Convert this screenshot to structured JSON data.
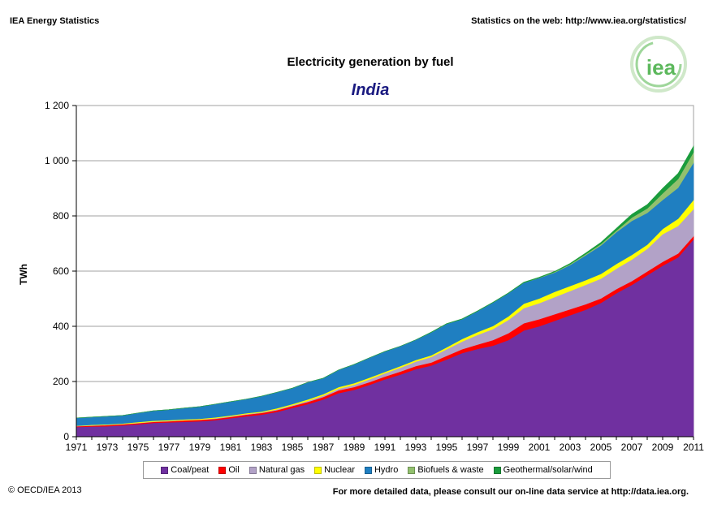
{
  "header": {
    "left": "IEA Energy Statistics",
    "right": "Statistics on the web: http://www.iea.org/statistics/"
  },
  "logo": {
    "text": "iea",
    "color": "#5cb85c"
  },
  "footer": {
    "left": "© OECD/IEA 2013",
    "right": "For more detailed data, please consult our on-line data service at http://data.iea.org."
  },
  "chart_data": {
    "type": "area",
    "stacked": true,
    "title": "Electricity generation by fuel",
    "subtitle": "India",
    "ylabel": "TWh",
    "xlabel": "",
    "ylim": [
      0,
      1200
    ],
    "yticks": [
      0,
      200,
      400,
      600,
      800,
      1000,
      1200
    ],
    "ytick_labels": [
      "0",
      "200",
      "400",
      "600",
      "800",
      "1 000",
      "1 200"
    ],
    "xtick_labels": [
      "1971",
      "1973",
      "1975",
      "1977",
      "1979",
      "1981",
      "1983",
      "1985",
      "1987",
      "1989",
      "1991",
      "1993",
      "1995",
      "1997",
      "1999",
      "2001",
      "2003",
      "2005",
      "2007",
      "2009",
      "2011"
    ],
    "grid": true,
    "legend_position": "bottom",
    "x": [
      1971,
      1972,
      1973,
      1974,
      1975,
      1976,
      1977,
      1978,
      1979,
      1980,
      1981,
      1982,
      1983,
      1984,
      1985,
      1986,
      1987,
      1988,
      1989,
      1990,
      1991,
      1992,
      1993,
      1994,
      1995,
      1996,
      1997,
      1998,
      1999,
      2000,
      2001,
      2002,
      2003,
      2004,
      2005,
      2006,
      2007,
      2008,
      2009,
      2010,
      2011
    ],
    "series": [
      {
        "name": "Coal/peat",
        "color": "#7030a0",
        "values": [
          35,
          37,
          38,
          41,
          45,
          50,
          52,
          54,
          56,
          60,
          67,
          74,
          80,
          90,
          104,
          118,
          135,
          158,
          170,
          188,
          208,
          225,
          245,
          258,
          280,
          303,
          318,
          330,
          350,
          385,
          400,
          420,
          440,
          460,
          485,
          520,
          550,
          585,
          620,
          650,
          715
        ]
      },
      {
        "name": "Oil",
        "color": "#ff0000",
        "values": [
          3,
          3,
          4,
          4,
          4,
          4,
          4,
          5,
          5,
          5,
          5,
          6,
          6,
          6,
          7,
          8,
          9,
          10,
          10,
          10,
          10,
          11,
          11,
          11,
          13,
          14,
          16,
          20,
          25,
          26,
          26,
          24,
          22,
          20,
          16,
          15,
          14,
          14,
          14,
          14,
          12
        ]
      },
      {
        "name": "Natural gas",
        "color": "#b2a2c7",
        "values": [
          1,
          1,
          1,
          1,
          1,
          1,
          1,
          1,
          1,
          2,
          2,
          2,
          2,
          3,
          3,
          4,
          5,
          6,
          8,
          10,
          12,
          14,
          16,
          20,
          24,
          28,
          35,
          40,
          48,
          55,
          58,
          62,
          66,
          70,
          72,
          74,
          78,
          82,
          100,
          100,
          98
        ]
      },
      {
        "name": "Nuclear",
        "color": "#ffff00",
        "values": [
          1,
          2,
          2,
          2,
          3,
          3,
          3,
          3,
          3,
          3,
          3,
          3,
          3,
          4,
          4,
          5,
          5,
          6,
          6,
          6,
          5,
          6,
          6,
          6,
          7,
          9,
          10,
          11,
          13,
          16,
          17,
          19,
          18,
          17,
          17,
          17,
          17,
          15,
          19,
          26,
          33
        ]
      },
      {
        "name": "Hydro",
        "color": "#1f7fc1",
        "values": [
          28,
          28,
          29,
          29,
          33,
          36,
          38,
          41,
          44,
          48,
          50,
          51,
          56,
          58,
          58,
          62,
          58,
          62,
          68,
          72,
          74,
          72,
          73,
          83,
          85,
          72,
          76,
          85,
          84,
          76,
          74,
          70,
          76,
          90,
          103,
          115,
          123,
          115,
          105,
          112,
          135
        ]
      },
      {
        "name": "Biofuels & waste",
        "color": "#92c06e",
        "values": [
          0,
          0,
          0,
          0,
          0,
          0,
          0,
          0,
          0,
          0,
          0,
          0,
          0,
          0,
          0,
          0,
          0,
          0,
          0,
          0,
          0,
          0,
          0,
          0,
          0,
          0,
          0,
          0,
          0,
          0,
          1,
          2,
          3,
          4,
          5,
          6,
          12,
          16,
          24,
          32,
          38
        ]
      },
      {
        "name": "Geothermal/solar/wind",
        "color": "#1a9c3c",
        "values": [
          0,
          0,
          0,
          0,
          0,
          0,
          0,
          0,
          0,
          0,
          0,
          0,
          0,
          0,
          0,
          0,
          0,
          0,
          0,
          0,
          0,
          0,
          0,
          1,
          1,
          1,
          1,
          1,
          1,
          2,
          2,
          2,
          3,
          4,
          6,
          8,
          12,
          14,
          18,
          20,
          22
        ]
      }
    ]
  }
}
